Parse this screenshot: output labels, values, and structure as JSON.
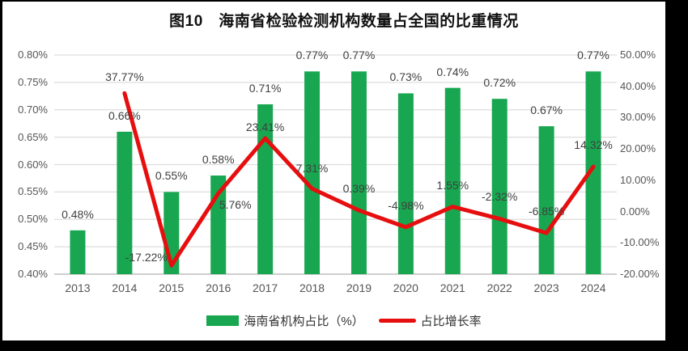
{
  "title": "图10　海南省检验检测机构数量占全国的比重情况",
  "colors": {
    "bar_green": "#18A750",
    "line_red": "#E60E0E",
    "gridline": "#DDDDDD",
    "axis_line": "#BFBFBF",
    "tick_text": "#555555",
    "value_text": "#3F3F3F",
    "frame_black": "#000000",
    "background": "#FFFFFF"
  },
  "legend": {
    "bar_label": "海南省机构占比（%）",
    "line_label": "占比增长率"
  },
  "chart_data": {
    "type": "combo-bar-line",
    "title": "图10　海南省检验检测机构数量占全国的比重情况",
    "categories": [
      "2013",
      "2014",
      "2015",
      "2016",
      "2017",
      "2018",
      "2019",
      "2020",
      "2021",
      "2022",
      "2023",
      "2024"
    ],
    "series": [
      {
        "name": "海南省机构占比（%）",
        "type": "bar",
        "axis": "left",
        "values": [
          0.48,
          0.66,
          0.55,
          0.58,
          0.71,
          0.77,
          0.77,
          0.73,
          0.74,
          0.72,
          0.67,
          0.77
        ],
        "labels": [
          "0.48%",
          "0.66%",
          "0.55%",
          "0.58%",
          "0.71%",
          "0.77%",
          "0.77%",
          "0.73%",
          "0.74%",
          "0.72%",
          "0.67%",
          "0.77%"
        ]
      },
      {
        "name": "占比增长率",
        "type": "line",
        "axis": "right",
        "values": [
          null,
          37.77,
          -17.22,
          5.76,
          23.41,
          7.31,
          0.39,
          -4.98,
          1.55,
          -2.32,
          -6.85,
          14.32
        ],
        "labels": [
          "",
          "37.77%",
          "-17.22%",
          "5.76%",
          "23.41%",
          "7.31%",
          "0.39%",
          "-4.98%",
          "1.55%",
          "-2.32%",
          "-6.85%",
          "14.32%"
        ],
        "label_offsets": [
          [
            0,
            0
          ],
          [
            0,
            -20
          ],
          [
            -31,
            -10
          ],
          [
            21,
            14
          ],
          [
            0,
            -14
          ],
          [
            0,
            -25
          ],
          [
            0,
            -27
          ],
          [
            0,
            -27
          ],
          [
            0,
            -27
          ],
          [
            0,
            -28
          ],
          [
            0,
            -27
          ],
          [
            0,
            -27
          ]
        ]
      }
    ],
    "left_axis": {
      "min": 0.4,
      "max": 0.8,
      "step": 0.05,
      "tick_labels": [
        "0.40%",
        "0.45%",
        "0.50%",
        "0.55%",
        "0.60%",
        "0.65%",
        "0.70%",
        "0.75%",
        "0.80%"
      ]
    },
    "right_axis": {
      "min": -20,
      "max": 50,
      "step": 10,
      "tick_labels": [
        "-20.00%",
        "-10.00%",
        "0.00%",
        "10.00%",
        "20.00%",
        "30.00%",
        "40.00%",
        "50.00%"
      ]
    },
    "grid": true,
    "legend_position": "bottom"
  }
}
